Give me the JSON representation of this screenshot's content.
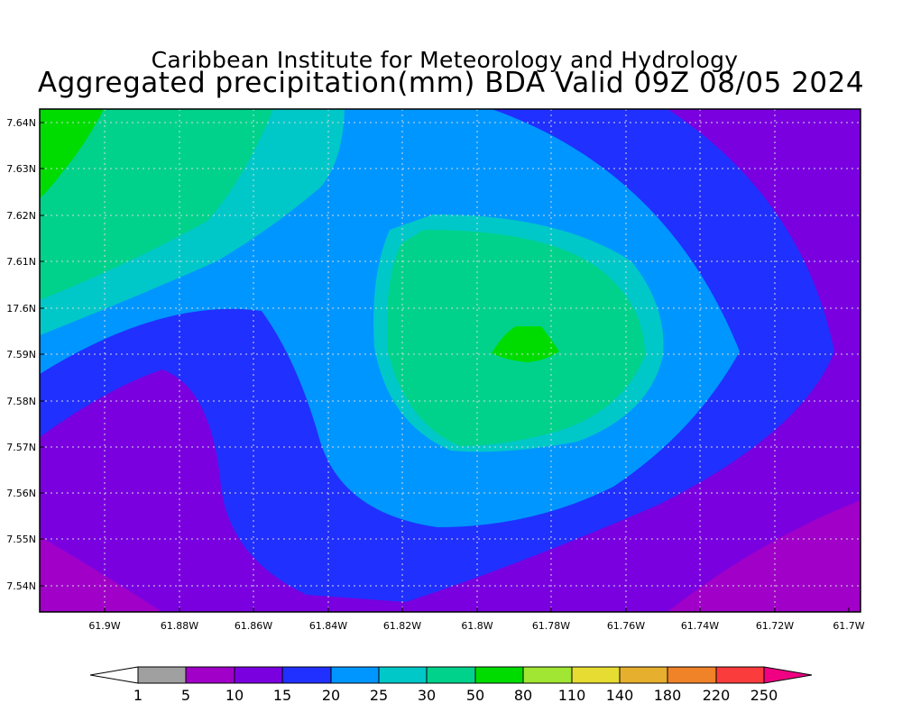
{
  "title": {
    "org": "Caribbean Institute for Meteorology and Hydrology",
    "main": "Aggregated precipitation(mm) BDA Valid 09Z 08/05 2024"
  },
  "axes": {
    "lat_labels": [
      "7.64N",
      "7.63N",
      "7.62N",
      "7.61N",
      "17.6N",
      "7.59N",
      "7.58N",
      "7.57N",
      "7.56N",
      "7.55N",
      "7.54N"
    ],
    "lon_labels": [
      "61.9W",
      "61.88W",
      "61.86W",
      "61.84W",
      "61.82W",
      "61.8W",
      "61.78W",
      "61.76W",
      "61.74W",
      "61.72W",
      "61.7W"
    ]
  },
  "colorbar": {
    "labels": [
      "1",
      "5",
      "10",
      "15",
      "20",
      "25",
      "30",
      "50",
      "80",
      "110",
      "140",
      "180",
      "220",
      "250"
    ],
    "colors": [
      "#ffffff",
      "#a0a0a0",
      "#a000c8",
      "#7a00e0",
      "#2030ff",
      "#0096ff",
      "#00c8c8",
      "#00d28c",
      "#00dc00",
      "#a0e632",
      "#e6dc32",
      "#e6af2d",
      "#f08228",
      "#fa3c3c",
      "#f00082"
    ]
  },
  "legend_colors": {
    "purple_5_10": "#a000c8",
    "violet_10_15": "#7a00e0",
    "blue_15_20": "#2030ff",
    "lightblue_20_25": "#0096ff",
    "cyan_25_30": "#00c8c8",
    "teal_30_50": "#00d28c",
    "green_50_80": "#00dc00"
  }
}
